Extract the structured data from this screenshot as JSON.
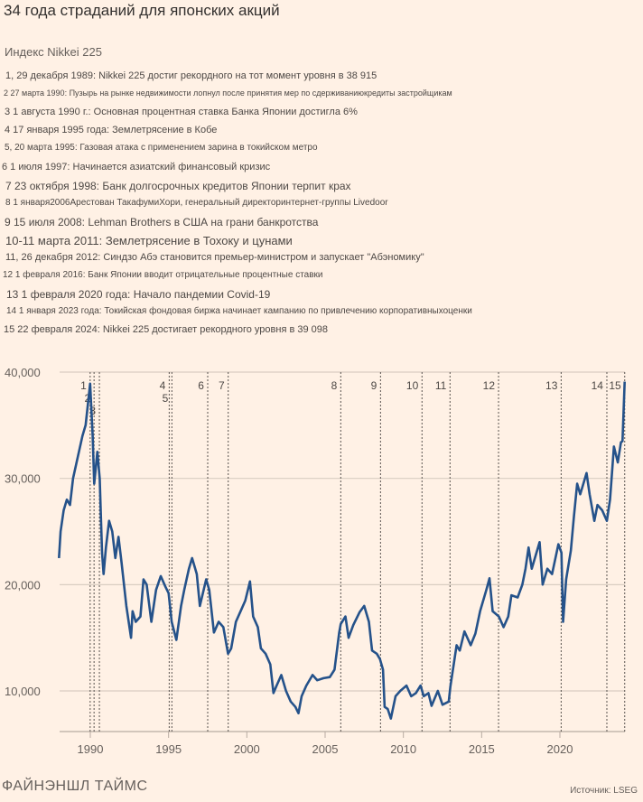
{
  "title": "34 года страданий для японских акций",
  "subtitle": "Индекс Nikkei 225",
  "events": [
    "1, 29 декабря 1989: Nikkei 225 достиг рекордного на тот момент уровня в 38 915",
    "2 27 марта 1990: Пузырь на рынке недвижимости лопнул после принятия мер по сдерживаниюкредиты застройщикам",
    "3 1 августа 1990 г.: Основная процентная ставка Банка Японии достигла 6%",
    "4 17 января 1995 года: Землетрясение в Кобе",
    "5, 20 марта 1995: Газовая атака с применением зарина в токийском метро",
    "6 1 июля 1997: Начинается азиатский финансовый кризис",
    "7 23 октября 1998: Банк долгосрочных кредитов Японии терпит крах",
    "8 1 января2006Арестован ТакафумиХори, генеральный директоринтернет-группы Livedoor",
    "9 15 июля 2008: Lehman Brothers в США на грани банкротства",
    "10-11 марта 2011: Землетрясение в Тохоку и цунами",
    "11, 26 декабря 2012: Синдзо Абэ становится премьер-министром и запускает \"Абэномику\"",
    "12 1 февраля 2016: Банк Японии вводит отрицательные процентные ставки",
    "13 1 февраля 2020 года: Начало пандемии Covid-19",
    "14 1 января 2023 года: Токийская фондовая биржа начинает кампанию по привлечению корпоративныхоценки",
    "15 22 февраля 2024: Nikkei 225 достигает рекордного уровня в 39 098"
  ],
  "footer": {
    "logo": "ФАЙНЭНШЛ ТАЙМС",
    "source": "Источник: LSEG"
  },
  "chart_data": {
    "type": "line",
    "title": "34 года страданий для японских акций",
    "subtitle": "Индекс Nikkei 225",
    "xlim": [
      1988,
      2024.2
    ],
    "ylim": [
      6200,
      40000
    ],
    "grid": true,
    "line_color": "#25528a",
    "x_ticks": [
      1990,
      1995,
      2000,
      2005,
      2010,
      2015,
      2020
    ],
    "x_tick_labels": [
      "1990",
      "1995",
      "2000",
      "2005",
      "2010",
      "2015",
      "2020"
    ],
    "y_ticks": [
      10000,
      20000,
      30000,
      40000
    ],
    "y_tick_labels": [
      "10,000",
      "20,000",
      "30,000",
      "40,000"
    ],
    "event_markers": [
      {
        "label": "1",
        "x": 1989.99
      },
      {
        "label": "2",
        "x": 1990.24
      },
      {
        "label": "3",
        "x": 1990.58
      },
      {
        "label": "4",
        "x": 1995.04
      },
      {
        "label": "5",
        "x": 1995.21
      },
      {
        "label": "6",
        "x": 1997.5
      },
      {
        "label": "7",
        "x": 1998.81
      },
      {
        "label": "8",
        "x": 2006.0
      },
      {
        "label": "9",
        "x": 2008.54
      },
      {
        "label": "10",
        "x": 2011.19
      },
      {
        "label": "11",
        "x": 2012.98
      },
      {
        "label": "12",
        "x": 2016.08
      },
      {
        "label": "13",
        "x": 2020.08
      },
      {
        "label": "14",
        "x": 2023.0
      },
      {
        "label": "15",
        "x": 2024.14
      }
    ],
    "series": [
      {
        "x": [
          1988.0,
          1988.1,
          1988.3,
          1988.5,
          1988.7,
          1988.9,
          1989.2,
          1989.5,
          1989.7,
          1989.99,
          1990.15,
          1990.25,
          1990.45,
          1990.6,
          1990.75,
          1990.85,
          1991.0,
          1991.2,
          1991.4,
          1991.6,
          1991.8,
          1992.0,
          1992.3,
          1992.6,
          1992.7,
          1992.9,
          1993.2,
          1993.4,
          1993.6,
          1993.9,
          1994.2,
          1994.5,
          1994.8,
          1995.0,
          1995.2,
          1995.5,
          1995.8,
          1996.0,
          1996.3,
          1996.5,
          1996.8,
          1997.0,
          1997.4,
          1997.6,
          1997.9,
          1998.2,
          1998.5,
          1998.8,
          1999.0,
          1999.3,
          1999.6,
          1999.9,
          2000.2,
          2000.4,
          2000.7,
          2000.9,
          2001.2,
          2001.5,
          2001.7,
          2001.9,
          2002.2,
          2002.5,
          2002.8,
          2003.1,
          2003.3,
          2003.5,
          2003.8,
          2004.2,
          2004.5,
          2004.9,
          2005.3,
          2005.6,
          2005.9,
          2006.0,
          2006.3,
          2006.5,
          2006.8,
          2007.2,
          2007.5,
          2007.8,
          2008.0,
          2008.3,
          2008.5,
          2008.7,
          2008.8,
          2009.0,
          2009.2,
          2009.5,
          2009.8,
          2010.2,
          2010.5,
          2010.8,
          2011.1,
          2011.3,
          2011.6,
          2011.8,
          2012.2,
          2012.5,
          2012.9,
          2013.0,
          2013.4,
          2013.6,
          2013.9,
          2014.3,
          2014.6,
          2014.9,
          2015.3,
          2015.5,
          2015.7,
          2016.1,
          2016.4,
          2016.7,
          2016.9,
          2017.3,
          2017.6,
          2017.8,
          2018.0,
          2018.2,
          2018.7,
          2018.9,
          2019.2,
          2019.5,
          2019.9,
          2020.1,
          2020.2,
          2020.4,
          2020.7,
          2020.9,
          2021.1,
          2021.3,
          2021.7,
          2021.9,
          2022.2,
          2022.4,
          2022.7,
          2023.0,
          2023.2,
          2023.45,
          2023.7,
          2023.9,
          2024.0,
          2024.14
        ],
        "y": [
          22500,
          25000,
          27000,
          28000,
          27500,
          30000,
          32000,
          34000,
          35000,
          38915,
          34000,
          29500,
          32500,
          30000,
          23000,
          21000,
          23500,
          26000,
          25000,
          22500,
          24500,
          22000,
          18000,
          15000,
          17500,
          16500,
          17000,
          20500,
          20000,
          16500,
          19500,
          20800,
          19800,
          19200,
          16500,
          14800,
          18000,
          19500,
          21500,
          22500,
          21000,
          18000,
          20500,
          19500,
          15500,
          16500,
          16000,
          13500,
          14000,
          16500,
          17500,
          18500,
          20300,
          17000,
          16000,
          14000,
          13500,
          12500,
          9800,
          10500,
          11500,
          10000,
          9000,
          8500,
          7900,
          9500,
          10500,
          11500,
          11000,
          11200,
          11300,
          12000,
          15500,
          16300,
          17000,
          15000,
          16200,
          17400,
          18000,
          16500,
          13800,
          13500,
          13000,
          12000,
          8500,
          8300,
          7400,
          9500,
          10000,
          10500,
          9500,
          9800,
          10500,
          9500,
          9800,
          8600,
          10000,
          8700,
          9000,
          10400,
          14300,
          13800,
          15600,
          14300,
          15400,
          17500,
          19500,
          20600,
          17500,
          17000,
          16000,
          17000,
          19000,
          18800,
          20000,
          21500,
          23500,
          21500,
          24000,
          20000,
          21500,
          21000,
          23800,
          23000,
          16500,
          20500,
          23200,
          26500,
          29500,
          28500,
          30500,
          28500,
          26000,
          27500,
          27000,
          26000,
          28000,
          33000,
          31500,
          33400,
          33500,
          39098
        ]
      }
    ]
  }
}
